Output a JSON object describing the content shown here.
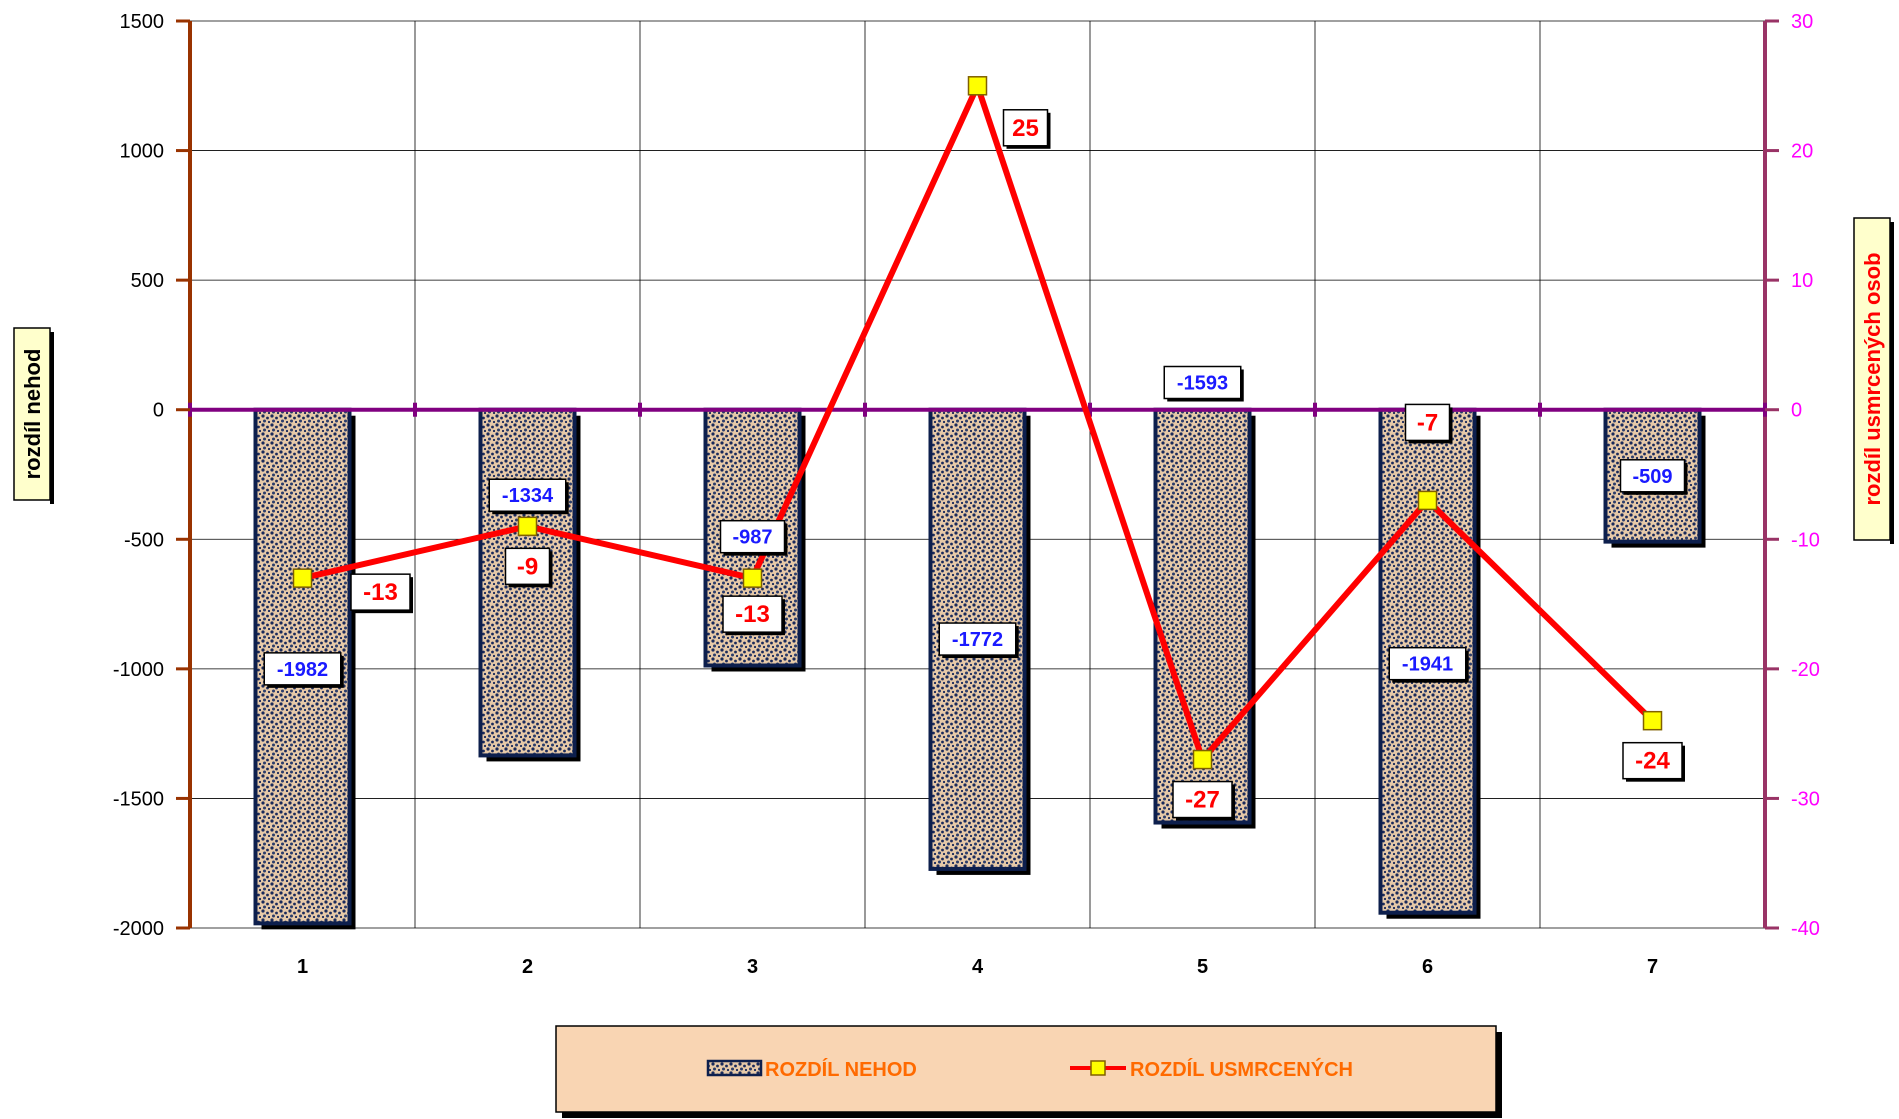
{
  "chart_data": {
    "type": "bar",
    "categories": [
      "1",
      "2",
      "3",
      "4",
      "5",
      "6",
      "7"
    ],
    "series": [
      {
        "name": "ROZDÍL NEHOD",
        "type": "bar",
        "axis": "left",
        "values": [
          -1982,
          -1334,
          -987,
          -1772,
          -1593,
          -1941,
          -509
        ],
        "color": "#0d1f4d"
      },
      {
        "name": "ROZDÍL USMRCENÝCH",
        "type": "line",
        "axis": "right",
        "values": [
          -13,
          -9,
          -13,
          25,
          -27,
          -7,
          -24
        ],
        "color": "#ff0000",
        "marker_color": "#ffff00"
      }
    ],
    "ylabel": "rozdíl nehod",
    "y2label": "rozdíl usmrcených osob",
    "ylim": [
      -2000,
      1500
    ],
    "y2lim": [
      -40,
      30
    ],
    "yticks": [
      1500,
      1000,
      500,
      0,
      -500,
      -1000,
      -1500,
      -2000
    ],
    "y2ticks": [
      30,
      20,
      10,
      0,
      -10,
      -20,
      -30,
      -40
    ],
    "grid": true,
    "legend": "bottom-center",
    "colors": {
      "left_axis": "#993300",
      "right_axis": "#993366",
      "zero_line": "#800080",
      "right_tick_labels": "#ff00ff",
      "bar_fill": "#e6c9a8",
      "legend_bg": "#f9d5b3"
    }
  }
}
